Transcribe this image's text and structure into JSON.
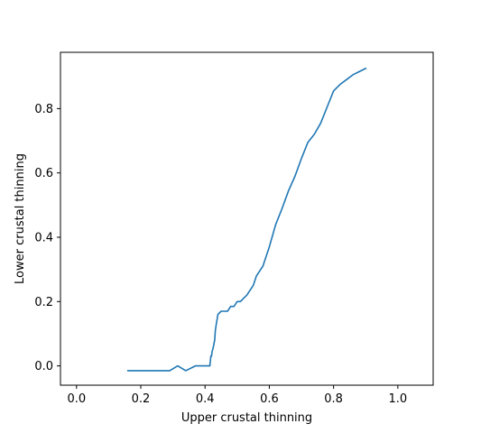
{
  "chart_data": {
    "type": "line",
    "title": "",
    "xlabel": "Upper crustal thinning",
    "ylabel": "Lower crustal thinning",
    "xlim": [
      -0.05,
      1.11
    ],
    "ylim": [
      -0.06,
      0.975
    ],
    "xticks": [
      0.0,
      0.2,
      0.4,
      0.6,
      0.8,
      1.0
    ],
    "xtick_labels": [
      "0.0",
      "0.2",
      "0.4",
      "0.6",
      "0.8",
      "1.0"
    ],
    "yticks": [
      0.0,
      0.2,
      0.4,
      0.6,
      0.8
    ],
    "ytick_labels": [
      "0.0",
      "0.2",
      "0.4",
      "0.6",
      "0.8"
    ],
    "grid": false,
    "legend": "none",
    "series": [
      {
        "color": "#1f77b4",
        "x": [
          0.16,
          0.2,
          0.25,
          0.29,
          0.315,
          0.34,
          0.37,
          0.39,
          0.41,
          0.415,
          0.418,
          0.42,
          0.422,
          0.425,
          0.428,
          0.43,
          0.432,
          0.435,
          0.44,
          0.45,
          0.47,
          0.48,
          0.49,
          0.5,
          0.51,
          0.52,
          0.53,
          0.54,
          0.55,
          0.56,
          0.57,
          0.58,
          0.59,
          0.6,
          0.62,
          0.64,
          0.66,
          0.68,
          0.7,
          0.72,
          0.74,
          0.76,
          0.78,
          0.8,
          0.82,
          0.84,
          0.86,
          0.88,
          0.9
        ],
        "y": [
          -0.015,
          -0.015,
          -0.015,
          -0.015,
          0.0,
          -0.015,
          0.0,
          0.0,
          0.0,
          0.0,
          0.03,
          0.03,
          0.045,
          0.055,
          0.07,
          0.08,
          0.11,
          0.13,
          0.16,
          0.17,
          0.17,
          0.185,
          0.185,
          0.2,
          0.2,
          0.21,
          0.22,
          0.235,
          0.25,
          0.28,
          0.295,
          0.31,
          0.34,
          0.37,
          0.44,
          0.49,
          0.545,
          0.59,
          0.645,
          0.695,
          0.72,
          0.755,
          0.805,
          0.855,
          0.875,
          0.89,
          0.905,
          0.915,
          0.925
        ]
      }
    ]
  }
}
